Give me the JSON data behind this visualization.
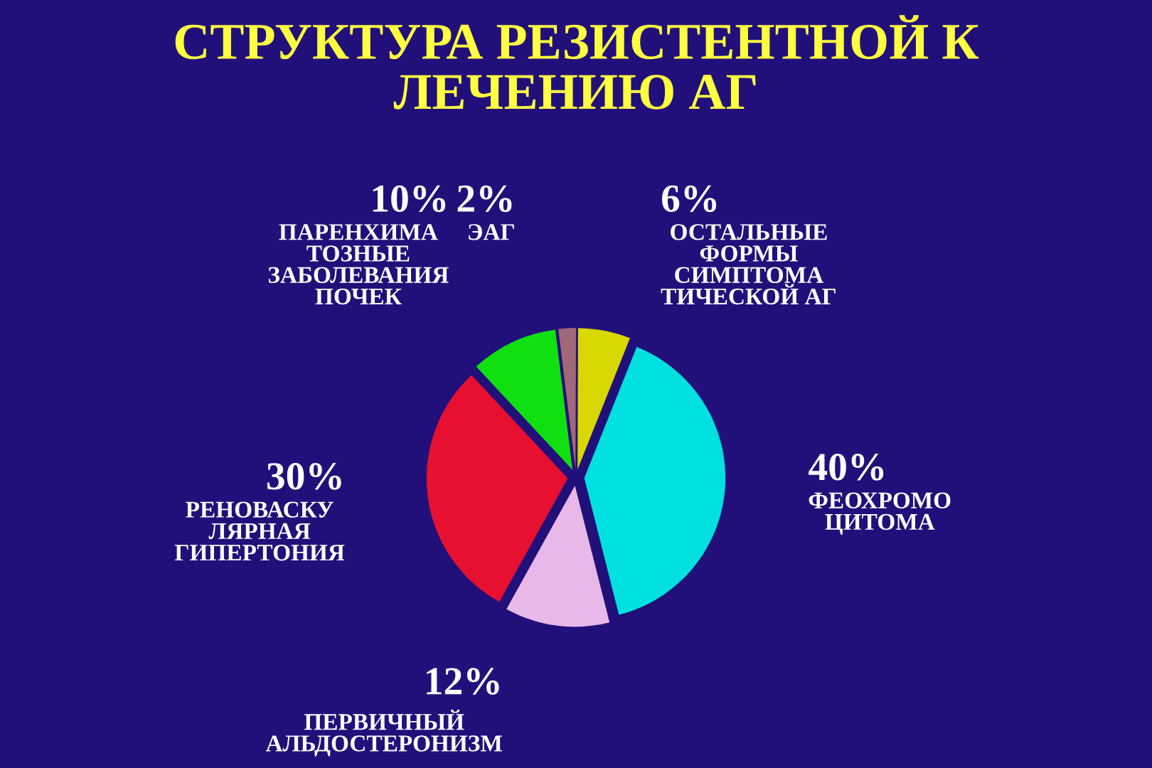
{
  "chart_data": {
    "type": "pie",
    "title": "СТРУКТУРА РЕЗИСТЕНТНОЙ К\nЛЕЧЕНИЮ АГ",
    "categories": [
      "ЭАГ",
      "ОСТАЛЬНЫЕ\nФОРМЫ\nСИМПТОМА\nТИЧЕСКОЙ АГ",
      "ФЕОХРОМО\nЦИТОМА",
      "ПЕРВИЧНЫЙ\nАЛЬДОСТЕРОНИЗМ",
      "РЕНОВАСКУ\nЛЯРНАЯ\nГИПЕРТОНИЯ",
      "ПАРЕНХИМА\nТОЗНЫЕ\nЗАБОЛЕВАНИЯ\nПОЧЕК"
    ],
    "values": [
      2,
      6,
      40,
      12,
      30,
      10
    ],
    "value_labels": [
      "2%",
      "6%",
      "40%",
      "12%",
      "30%",
      "10%"
    ],
    "colors": [
      "#a06878",
      "#d8d800",
      "#00e0e0",
      "#e8b8e8",
      "#e81030",
      "#10e010"
    ]
  }
}
